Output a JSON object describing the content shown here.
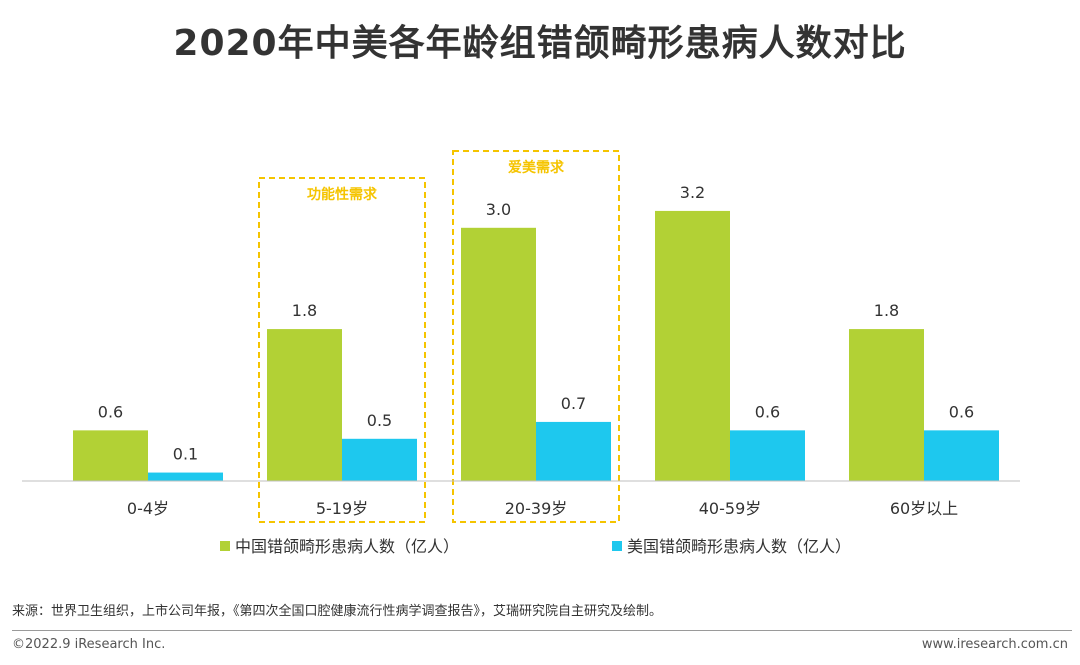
{
  "title": "2020年中美各年龄组错颌畸形患病人数对比",
  "colors": {
    "china": "#b2d135",
    "usa": "#1ec8ee",
    "highlight": "#f5c400",
    "axis": "#bfbfbf",
    "text": "#333333"
  },
  "chart_data": {
    "type": "bar",
    "categories": [
      "0-4岁",
      "5-19岁",
      "20-39岁",
      "40-59岁",
      "60岁以上"
    ],
    "series": [
      {
        "name": "中国错颌畸形患病人数（亿人）",
        "values": [
          0.6,
          1.8,
          3.0,
          3.2,
          1.8
        ],
        "labels": [
          "0.6",
          "1.8",
          "3.0",
          "3.2",
          "1.8"
        ]
      },
      {
        "name": "美国错颌畸形患病人数（亿人）",
        "values": [
          0.1,
          0.5,
          0.7,
          0.6,
          0.6
        ],
        "labels": [
          "0.1",
          "0.5",
          "0.7",
          "0.6",
          "0.6"
        ]
      }
    ],
    "annotations": [
      {
        "category_index": 1,
        "text": "功能性需求"
      },
      {
        "category_index": 2,
        "text": "爱美需求"
      }
    ],
    "legend_position": "bottom",
    "ylim": [
      0,
      3.5
    ]
  },
  "footer": {
    "source": "来源：世界卫生组织，上市公司年报，《第四次全国口腔健康流行性病学调查报告》，艾瑞研究院自主研究及绘制。",
    "copyright": "©2022.9 iResearch Inc.",
    "website": "www.iresearch.com.cn"
  }
}
